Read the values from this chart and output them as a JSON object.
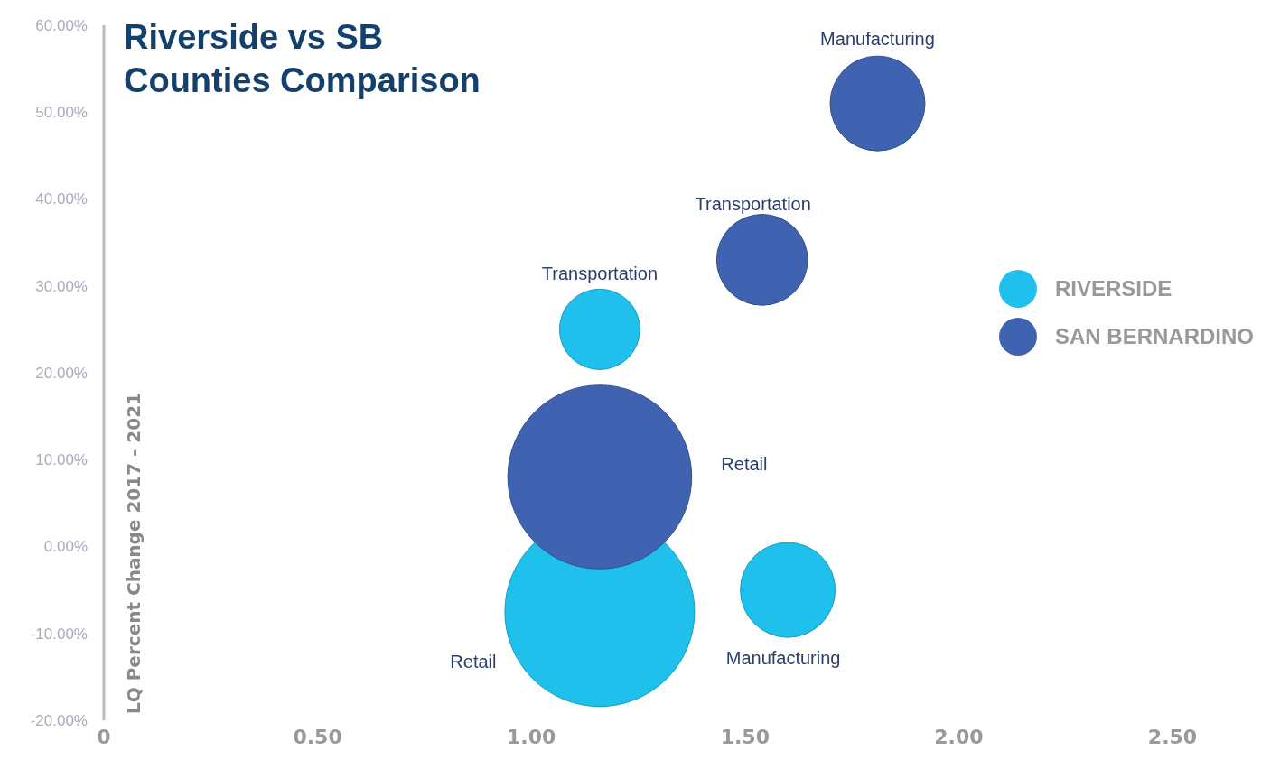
{
  "chart_data": {
    "type": "bubble",
    "title": "Riverside vs SB\nCounties Comparison",
    "ylabel": "LQ Percent Change 2017 - 2021",
    "xlim": [
      0,
      2.5
    ],
    "xticks": [
      {
        "value": 0,
        "label": "0"
      },
      {
        "value": 0.5,
        "label": "0.50"
      },
      {
        "value": 1,
        "label": "1.00"
      },
      {
        "value": 1.5,
        "label": "1.50"
      },
      {
        "value": 2,
        "label": "2.00"
      },
      {
        "value": 2.5,
        "label": "2.50"
      }
    ],
    "ylim": [
      -20,
      60
    ],
    "yticks": [
      {
        "value": 60,
        "label": "60.00%"
      },
      {
        "value": 50,
        "label": "50.00%"
      },
      {
        "value": 40,
        "label": "40.00%"
      },
      {
        "value": 30,
        "label": "30.00%"
      },
      {
        "value": 20,
        "label": "20.00%"
      },
      {
        "value": 10,
        "label": "10.00%"
      },
      {
        "value": 0,
        "label": "0.00%"
      },
      {
        "value": -10,
        "label": "-10.00%"
      },
      {
        "value": -20,
        "label": "-20.00%"
      }
    ],
    "series": [
      {
        "name": "RIVERSIDE",
        "color": "#1fc0ec",
        "x": [
          1.16,
          1.16,
          1.6
        ],
        "values": [
          25,
          -7.5,
          -5
        ],
        "sizes": [
          0.18,
          1,
          0.25
        ]
      },
      {
        "name": "SAN BERNARDINO",
        "color": "#3f63b0",
        "x": [
          1.81,
          1.54,
          1.16
        ],
        "values": [
          51,
          33,
          8
        ],
        "sizes": [
          0.25,
          0.23,
          0.94
        ]
      }
    ],
    "annotations": [
      "Transportation",
      "Retail",
      "Manufacturing",
      "Manufacturing",
      "Transportation",
      "Retail"
    ],
    "legend": "right",
    "grid": false
  }
}
